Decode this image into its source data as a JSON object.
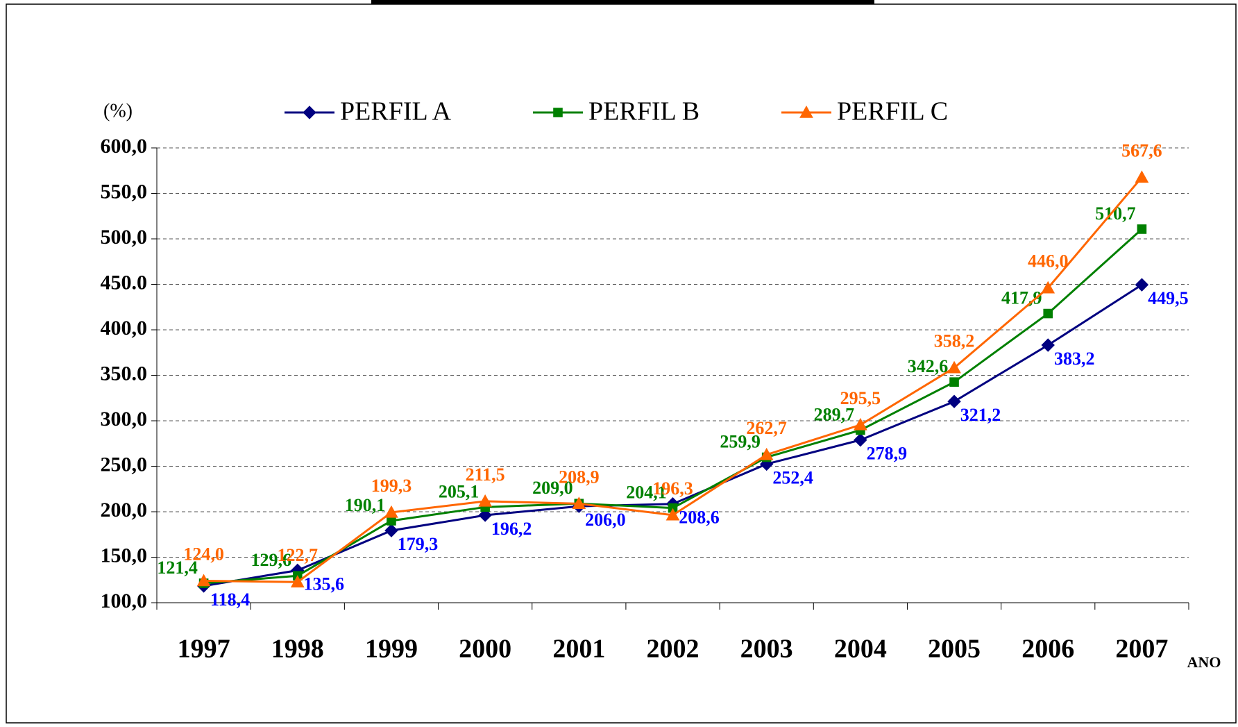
{
  "chart_data": {
    "type": "line",
    "y_label": "(%)",
    "x_label": "ANO",
    "categories": [
      "1997",
      "1998",
      "1999",
      "2000",
      "2001",
      "2002",
      "2003",
      "2004",
      "2005",
      "2006",
      "2007"
    ],
    "series": [
      {
        "name": "PERFIL A",
        "color": "#000080",
        "label_color": "#0000ff",
        "marker": "diamond",
        "values": [
          118.4,
          135.6,
          179.3,
          196.2,
          206.0,
          208.6,
          252.4,
          278.9,
          321.2,
          383.2,
          449.5
        ],
        "value_labels": [
          "118,4",
          "135,6",
          "179,3",
          "196,2",
          "206,0",
          "208,6",
          "252,4",
          "278,9",
          "321,2",
          "383,2",
          "449,5"
        ]
      },
      {
        "name": "PERFIL B",
        "color": "#008000",
        "label_color": "#008000",
        "marker": "square",
        "values": [
          121.4,
          129.6,
          190.1,
          205.1,
          209.0,
          204.1,
          259.9,
          289.7,
          342.6,
          417.9,
          510.7
        ],
        "value_labels": [
          "121,4",
          "129,6",
          "190,1",
          "205,1",
          "209,0",
          "204,1",
          "259,9",
          "289,7",
          "342,6",
          "417,9",
          "510,7"
        ]
      },
      {
        "name": "PERFIL C",
        "color": "#ff6600",
        "label_color": "#ff6600",
        "marker": "triangle",
        "values": [
          124.0,
          122.7,
          199.3,
          211.5,
          208.9,
          196.3,
          262.7,
          295.5,
          358.2,
          446.0,
          567.6
        ],
        "value_labels": [
          "124,0",
          "122,7",
          "199,3",
          "211,5",
          "208,9",
          "196,3",
          "262,7",
          "295,5",
          "358,2",
          "446,0",
          "567,6"
        ]
      }
    ],
    "ylim": [
      100,
      600
    ],
    "yticks": [
      {
        "value": 100,
        "label": "100,0"
      },
      {
        "value": 150,
        "label": "150,0"
      },
      {
        "value": 200,
        "label": "200,0"
      },
      {
        "value": 250,
        "label": "250,0"
      },
      {
        "value": 300,
        "label": "300,0"
      },
      {
        "value": 350,
        "label": "350.0"
      },
      {
        "value": 400,
        "label": "400,0"
      },
      {
        "value": 450,
        "label": "450.0"
      },
      {
        "value": 500,
        "label": "500,0"
      },
      {
        "value": 550,
        "label": "550,0"
      },
      {
        "value": 600,
        "label": "600,0"
      }
    ],
    "grid": true,
    "legend": "top"
  }
}
